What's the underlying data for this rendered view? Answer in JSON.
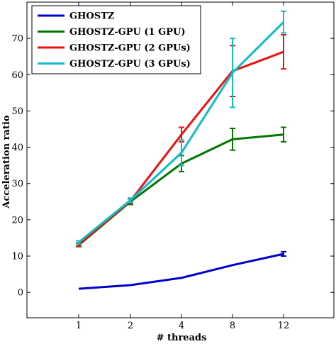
{
  "chart_data": {
    "type": "line",
    "xlabel": "# threads",
    "ylabel": "Acceleration ratio",
    "categories": [
      "1",
      "2",
      "4",
      "8",
      "12"
    ],
    "ylim": [
      -7,
      80
    ],
    "yticks": [
      0,
      10,
      20,
      30,
      40,
      50,
      60,
      70
    ],
    "grid": false,
    "legend_position": "top-left",
    "series": [
      {
        "name": "GHOSTZ",
        "color": "#0000cc",
        "values": [
          1.0,
          2.0,
          4.0,
          7.5,
          10.6
        ],
        "errors": [
          0,
          0,
          0,
          0,
          0.6
        ]
      },
      {
        "name": "GHOSTZ-GPU (1 GPU)",
        "color": "#007700",
        "values": [
          13.0,
          25.0,
          35.5,
          42.2,
          43.5
        ],
        "errors": [
          0.4,
          0.8,
          2.2,
          3.0,
          2.0
        ]
      },
      {
        "name": "GHOSTZ-GPU (2 GPUs)",
        "color": "#ee1111",
        "values": [
          13.2,
          25.2,
          43.5,
          61.0,
          66.3
        ],
        "errors": [
          0.4,
          0.6,
          2.0,
          7.0,
          4.7
        ]
      },
      {
        "name": "GHOSTZ-GPU (3 GPUs)",
        "color": "#11bbcc",
        "values": [
          13.8,
          25.4,
          38.5,
          60.5,
          74.5
        ],
        "errors": [
          0.4,
          0.6,
          3.5,
          9.5,
          3.0
        ]
      }
    ]
  }
}
